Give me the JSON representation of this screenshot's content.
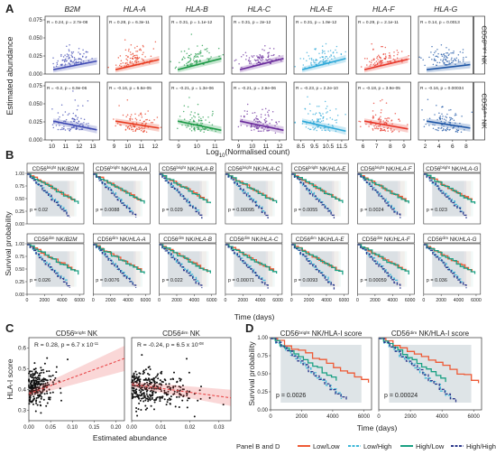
{
  "figure": {
    "panel_letters": [
      "A",
      "B",
      "C",
      "D"
    ],
    "a_ylabel": "Estimated abundance",
    "a_xlabel": "Log",
    "a_xlabel_sub": "10",
    "a_xlabel_rest": "(Normalised count)",
    "a_y_ticks": [
      "0.075",
      "0.050",
      "0.025",
      "0.000"
    ],
    "b_ylabel": "Survival probability",
    "b_xlabel": "Time (days)",
    "b_y_ticks": [
      "1.00",
      "0.75",
      "0.50",
      "0.25",
      "0.00"
    ],
    "b_x_ticks": [
      "0",
      "2000",
      "4000",
      "6000"
    ],
    "c_ylabel": "HLA-I score",
    "c_xlabel": "Estimated abundance",
    "c_y_ticks": [
      "0.6",
      "0.5",
      "0.4",
      "0.3"
    ],
    "d_ylabel": "Survival probability",
    "d_xlabel": "Time (days)",
    "legend_title": "Panel B and D",
    "legend_items": [
      "Low/Low",
      "Low/High",
      "High/Low",
      "High/High"
    ],
    "colors": {
      "low_low": "#ee5a36",
      "low_high": "#3fb8d8",
      "high_low": "#1aa083",
      "high_high": "#2e3a8c",
      "fit": "#e8484a"
    }
  },
  "chart_data": [
    {
      "type": "scatter",
      "panel": "A",
      "genes": [
        "B2M",
        "HLA-A",
        "HLA-B",
        "HLA-C",
        "HLA-E",
        "HLA-F",
        "HLA-G"
      ],
      "gene_colors": [
        "#3f4ab3",
        "#e83a1f",
        "#1f9a48",
        "#6a2c9c",
        "#2da8d8",
        "#e8372a",
        "#1e56a6"
      ],
      "x_ticks": [
        [
          "10",
          "11",
          "12",
          "13"
        ],
        [
          "9",
          "10",
          "11",
          "12"
        ],
        [
          "9",
          "10",
          "11"
        ],
        [
          "9",
          "10",
          "11",
          "12"
        ],
        [
          "8.5",
          "9.5",
          "10.5",
          "11.5"
        ],
        [
          "6",
          "7",
          "8",
          "9"
        ],
        [
          "2",
          "4",
          "6",
          "8"
        ]
      ],
      "rows": [
        {
          "row_label": "CD56bright NK",
          "row_label_base": "CD56",
          "row_label_sup": "bright",
          "row_label_rest": " NK",
          "stats": [
            "R = 0.24, p = 2.7e-08",
            "R = 0.28, p = 6.3e-11",
            "R = 0.31, p = 1.1e-12",
            "R = 0.31, p = 2e-12",
            "R = 0.31, p = 1.9e-12",
            "R = 0.29, p = 2.1e-11",
            "R = 0.14, p = 0.0013"
          ],
          "r": [
            0.24,
            0.28,
            0.31,
            0.31,
            0.31,
            0.29,
            0.14
          ]
        },
        {
          "row_label": "CD56dim NK",
          "row_label_base": "CD56",
          "row_label_sup": "dim",
          "row_label_rest": " NK",
          "stats": [
            "R = -0.2, p = 6.9e-06",
            "R = -0.16, p = 6.6e-05",
            "R = -0.21, p = 1.3e-06",
            "R = -0.21, p = 2.9e-06",
            "R = -0.23, p = 2.2e-10",
            "R = -0.18, p = 3.9e-05",
            "R = -0.16, p = 0.00034"
          ],
          "r": [
            -0.2,
            -0.16,
            -0.21,
            -0.21,
            -0.23,
            -0.18,
            -0.16
          ]
        }
      ],
      "ylim": [
        0,
        0.08
      ]
    },
    {
      "type": "line",
      "panel": "B",
      "subtype": "kaplan-meier",
      "rows": [
        {
          "cell": "CD56bright NK",
          "cell_base": "CD56",
          "cell_sup": "bright",
          "cell_rest": " NK/",
          "genes": [
            "B2M",
            "HLA-A",
            "HLA-B",
            "HLA-C",
            "HLA-E",
            "HLA-F",
            "HLA-G"
          ],
          "pvalues": [
            "p = 0.02",
            "p = 0.0088",
            "p = 0.029",
            "p = 0.00095",
            "p = 0.0055",
            "p = 0.0024",
            "p = 0.023"
          ]
        },
        {
          "cell": "CD56dim NK",
          "cell_base": "CD56",
          "cell_sup": "dim",
          "cell_rest": " NK/",
          "genes": [
            "B2M",
            "HLA-A",
            "HLA-B",
            "HLA-C",
            "HLA-E",
            "HLA-F",
            "HLA-G"
          ],
          "pvalues": [
            "p = 0.026",
            "p = 0.0076",
            "p = 0.022",
            "p = 0.00071",
            "p = 0.0093",
            "p = 0.00059",
            "p = 0.036"
          ]
        }
      ],
      "xlim": [
        0,
        6500
      ],
      "ylim": [
        0,
        1
      ],
      "series": [
        "Low/Low",
        "Low/High",
        "High/Low",
        "High/High"
      ]
    },
    {
      "type": "scatter",
      "panel": "C",
      "plots": [
        {
          "title": "CD56bright NK",
          "title_base": "CD56",
          "title_sup": "bright",
          "title_rest": " NK",
          "stat_base": "R = 0.28, p = 6.7 x 10",
          "stat_sup": "-11",
          "x_ticks": [
            "0.00",
            "0.05",
            "0.10",
            "0.15",
            "0.20"
          ],
          "xlim": [
            0,
            0.22
          ],
          "ylim": [
            0.25,
            0.65
          ],
          "fit": {
            "x": [
              0,
              0.22
            ],
            "y": [
              0.38,
              0.55
            ]
          }
        },
        {
          "title": "CD56dim NK",
          "title_base": "CD56",
          "title_sup": "dim",
          "title_rest": " NK",
          "stat_base": "R = -0.24, p = 6.5 x 10",
          "stat_sup": "-08",
          "x_ticks": [
            "0.00",
            "0.01",
            "0.02",
            "0.03"
          ],
          "xlim": [
            0,
            0.034
          ],
          "ylim": [
            0.25,
            0.65
          ],
          "fit": {
            "x": [
              0,
              0.034
            ],
            "y": [
              0.425,
              0.36
            ]
          }
        }
      ]
    },
    {
      "type": "line",
      "panel": "D",
      "subtype": "kaplan-meier",
      "plots": [
        {
          "title": "CD56bright NK/HLA-I score",
          "title_base": "CD56",
          "title_sup": "bright",
          "title_rest": " NK/HLA-I score",
          "pvalue": "p = 0.0026"
        },
        {
          "title": "CD56dim NK/HLA-I score",
          "title_base": "CD56",
          "title_sup": "dim",
          "title_rest": " NK/HLA-I score",
          "pvalue": "p = 0.00024"
        }
      ],
      "x_ticks": [
        "0",
        "2000",
        "4000",
        "6000"
      ],
      "xlim": [
        0,
        6500
      ],
      "ylim": [
        0,
        1
      ],
      "series": [
        "Low/Low",
        "Low/High",
        "High/Low",
        "High/High"
      ]
    }
  ]
}
